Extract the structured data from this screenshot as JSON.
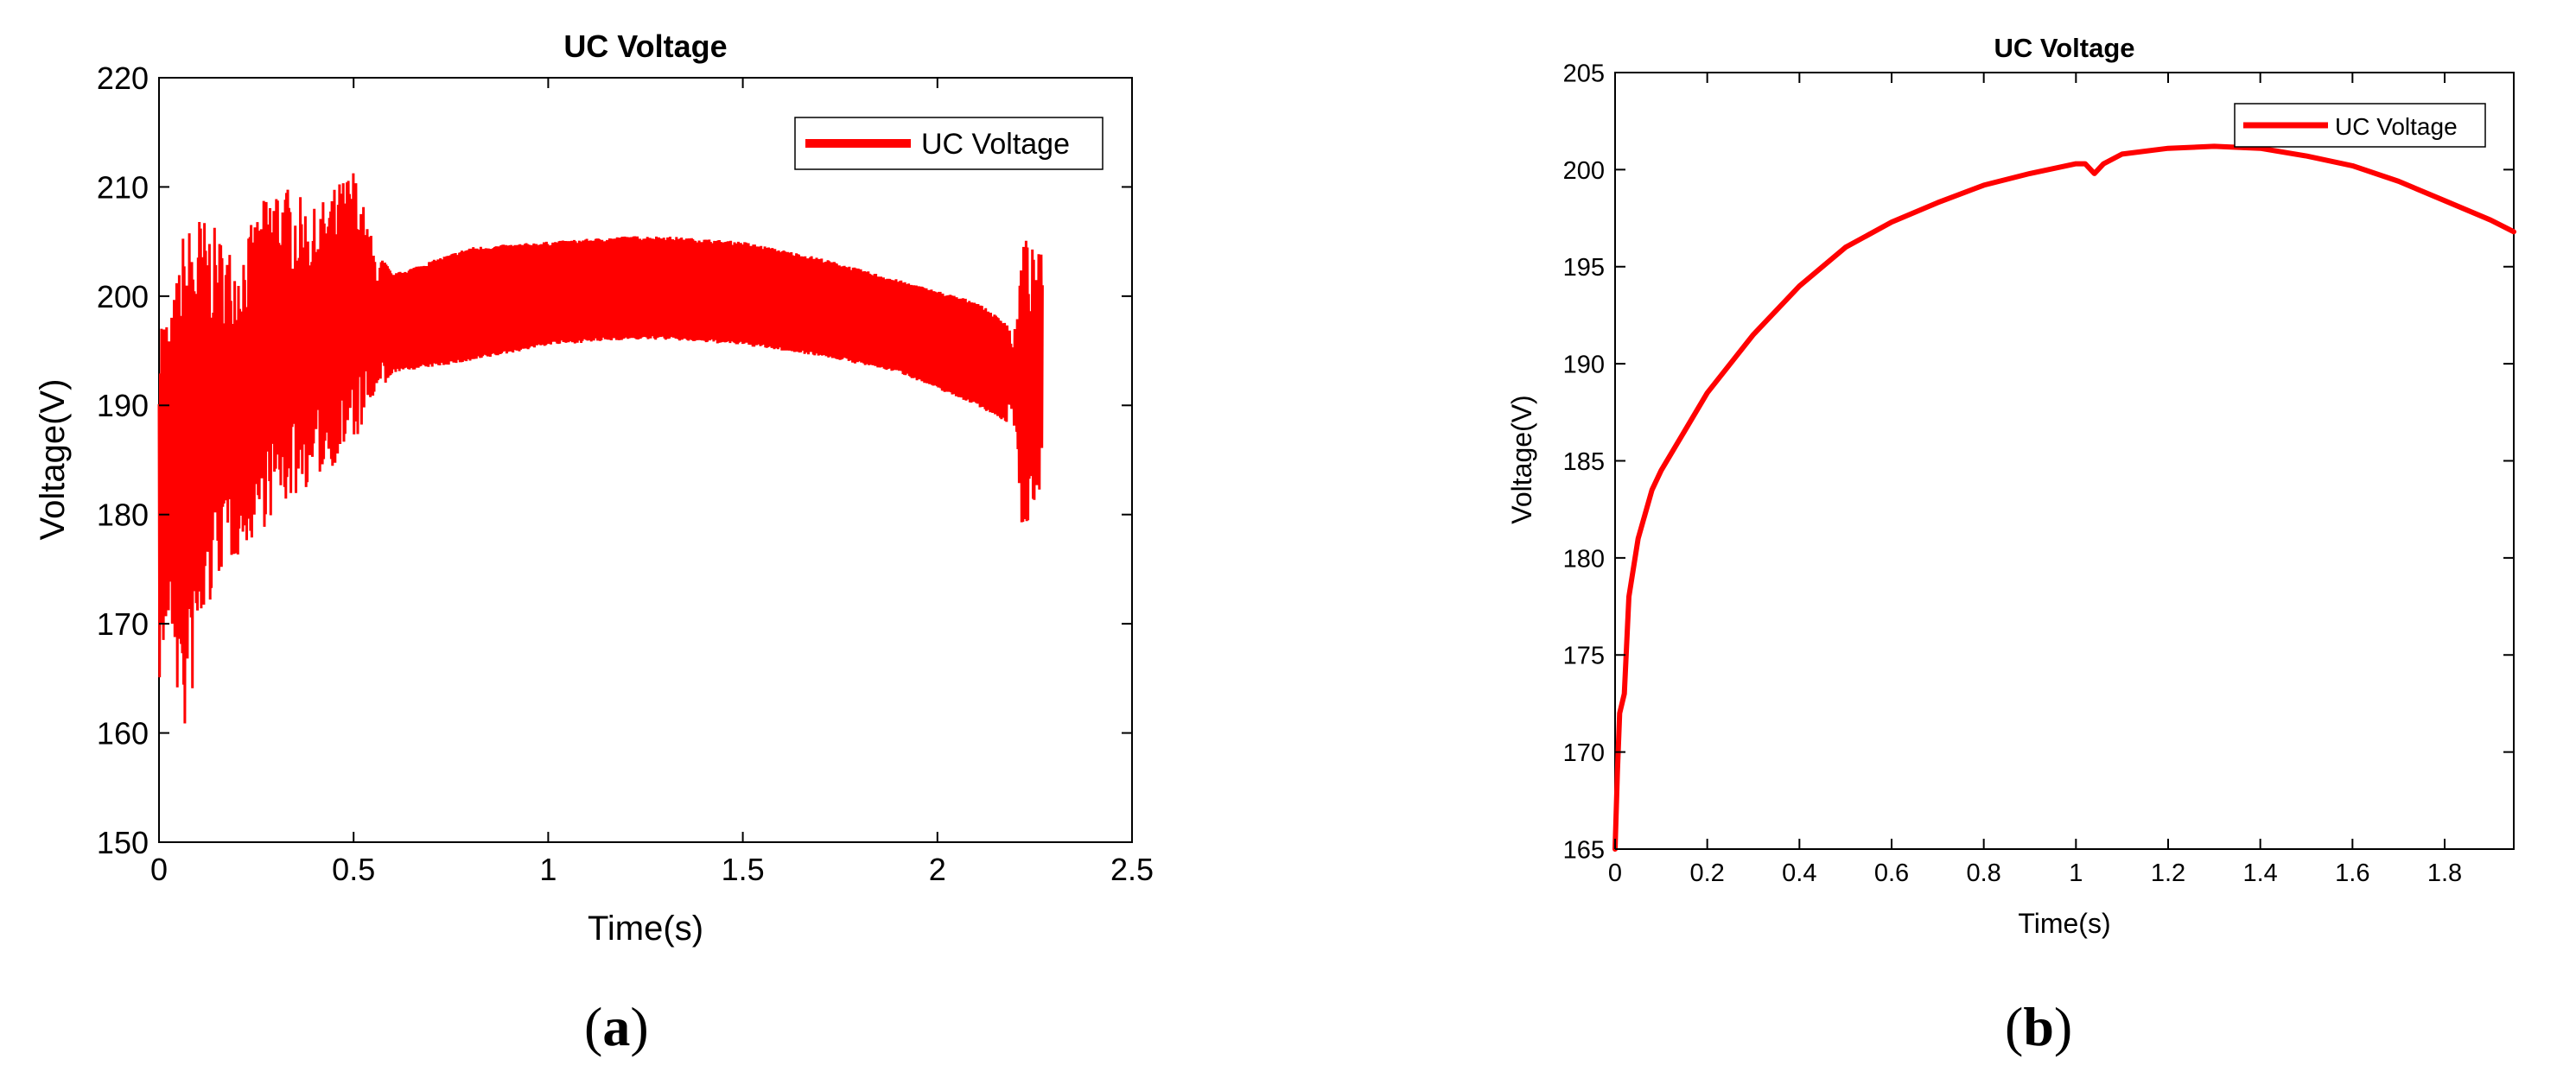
{
  "figure": {
    "panel_a_label": "a",
    "panel_b_label": "b"
  },
  "chart_data": [
    {
      "type": "line",
      "title": "UC Voltage",
      "xlabel": "Time(s)",
      "ylabel": "Voltage(V)",
      "xlim": [
        0,
        2.5
      ],
      "ylim": [
        150,
        220
      ],
      "xticks": [
        "0",
        "0.5",
        "1",
        "1.5",
        "2",
        "2.5"
      ],
      "yticks": [
        "150",
        "160",
        "170",
        "180",
        "190",
        "200",
        "210",
        "220"
      ],
      "grid": false,
      "legend_position": "top-right",
      "color": "#ff0000",
      "series": [
        {
          "name": "UC Voltage",
          "style": "high-frequency oscillation (upper and lower envelope)",
          "x": [
            0.0,
            0.03,
            0.06,
            0.1,
            0.15,
            0.2,
            0.3,
            0.4,
            0.5,
            0.55,
            0.6,
            0.8,
            1.0,
            1.2,
            1.3,
            1.5,
            1.7,
            1.9,
            2.1,
            2.2,
            2.22,
            2.25,
            2.27
          ],
          "upper": [
            200,
            198,
            206,
            208,
            206,
            204,
            211,
            208,
            212,
            205,
            202,
            204.5,
            205,
            205.5,
            205.5,
            205,
            203.5,
            201.5,
            199.5,
            197,
            206,
            204,
            204
          ],
          "lower": [
            164,
            170,
            158,
            166,
            174,
            176,
            180,
            183,
            186,
            190,
            193,
            194,
            195.5,
            196,
            196,
            195.5,
            194.5,
            193,
            190,
            188,
            177,
            181,
            183
          ]
        }
      ]
    },
    {
      "type": "line",
      "title": "UC Voltage",
      "xlabel": "Time(s)",
      "ylabel": "Voltage(V)",
      "xlim": [
        0,
        1.95
      ],
      "ylim": [
        165,
        205
      ],
      "xticks": [
        "0",
        "0.2",
        "0.4",
        "0.6",
        "0.8",
        "1",
        "1.2",
        "1.4",
        "1.6",
        "1.8"
      ],
      "yticks": [
        "165",
        "170",
        "175",
        "180",
        "185",
        "190",
        "195",
        "200",
        "205"
      ],
      "grid": false,
      "legend_position": "top-right",
      "color": "#ff0000",
      "series": [
        {
          "name": "UC Voltage",
          "x": [
            0.0,
            0.005,
            0.01,
            0.02,
            0.03,
            0.05,
            0.08,
            0.1,
            0.15,
            0.2,
            0.3,
            0.4,
            0.5,
            0.6,
            0.7,
            0.8,
            0.9,
            1.0,
            1.02,
            1.04,
            1.06,
            1.1,
            1.2,
            1.3,
            1.4,
            1.5,
            1.6,
            1.7,
            1.8,
            1.9,
            1.95
          ],
          "y": [
            165,
            169,
            172,
            173,
            178,
            181,
            183.5,
            184.5,
            186.5,
            188.5,
            191.5,
            194,
            196,
            197.3,
            198.3,
            199.2,
            199.8,
            200.3,
            200.3,
            199.8,
            200.3,
            200.8,
            201.1,
            201.2,
            201.1,
            200.7,
            200.2,
            199.4,
            198.4,
            197.4,
            196.8
          ]
        }
      ]
    }
  ]
}
